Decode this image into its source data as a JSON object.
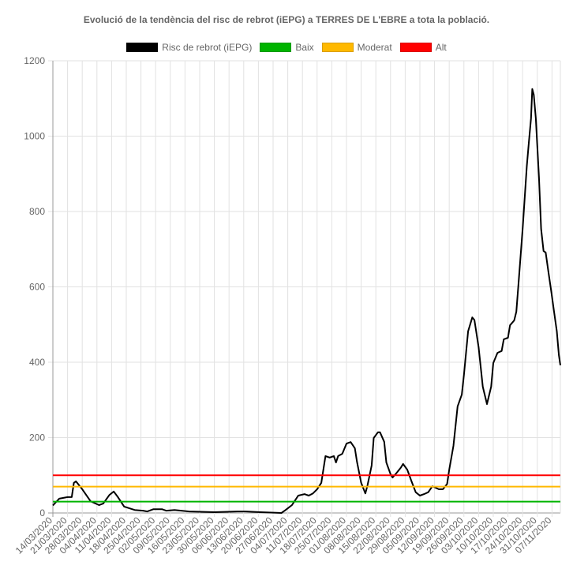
{
  "chart_data": {
    "type": "line",
    "title": "Evolució de la tendència del risc de rebrot (iEPG) a TERRES DE L'EBRE a tota la població.",
    "xlabel": "",
    "ylabel": "",
    "ylim": [
      0,
      1200
    ],
    "yticks": [
      "0",
      "200",
      "400",
      "600",
      "800",
      "1000",
      "1200"
    ],
    "x_unit": "days since 14/03/2020",
    "xlim": [
      0,
      242
    ],
    "xtick_labels": [
      "14/03/2020",
      "21/03/2020",
      "28/03/2020",
      "04/04/2020",
      "11/04/2020",
      "18/04/2020",
      "25/04/2020",
      "02/05/2020",
      "09/05/2020",
      "16/05/2020",
      "23/05/2020",
      "30/05/2020",
      "06/06/2020",
      "13/06/2020",
      "20/06/2020",
      "27/06/2020",
      "04/07/2020",
      "11/07/2020",
      "18/07/2020",
      "25/07/2020",
      "01/08/2020",
      "08/08/2020",
      "15/08/2020",
      "22/08/2020",
      "29/08/2020",
      "05/09/2020",
      "12/09/2020",
      "19/09/2020",
      "26/09/2020",
      "03/10/2020",
      "10/10/2020",
      "17/10/2020",
      "24/10/2020",
      "31/10/2020",
      "07/11/2020"
    ],
    "grid": true,
    "legend_position": "top",
    "series": [
      {
        "name": "Risc de rebrot (iEPG)",
        "color": "#000000",
        "points": [
          [
            0,
            20
          ],
          [
            3,
            38
          ],
          [
            7,
            42
          ],
          [
            9,
            42
          ],
          [
            10,
            80
          ],
          [
            11,
            84
          ],
          [
            14,
            63
          ],
          [
            18,
            31
          ],
          [
            22,
            21
          ],
          [
            24,
            25
          ],
          [
            27,
            48
          ],
          [
            29,
            57
          ],
          [
            31,
            42
          ],
          [
            34,
            17
          ],
          [
            39,
            8
          ],
          [
            43,
            6
          ],
          [
            45,
            4
          ],
          [
            48,
            10
          ],
          [
            52,
            10
          ],
          [
            54,
            6
          ],
          [
            58,
            8
          ],
          [
            65,
            4
          ],
          [
            77,
            2
          ],
          [
            88,
            4
          ],
          [
            92,
            4
          ],
          [
            99,
            2
          ],
          [
            109,
            0
          ],
          [
            111,
            8
          ],
          [
            114,
            21
          ],
          [
            117,
            46
          ],
          [
            120,
            50
          ],
          [
            122,
            46
          ],
          [
            124,
            52
          ],
          [
            126,
            63
          ],
          [
            128,
            80
          ],
          [
            130,
            151
          ],
          [
            132,
            147
          ],
          [
            134,
            151
          ],
          [
            135,
            134
          ],
          [
            136,
            151
          ],
          [
            138,
            157
          ],
          [
            140,
            184
          ],
          [
            142,
            188
          ],
          [
            144,
            172
          ],
          [
            145,
            136
          ],
          [
            147,
            80
          ],
          [
            149,
            52
          ],
          [
            150,
            73
          ],
          [
            152,
            126
          ],
          [
            153,
            199
          ],
          [
            155,
            214
          ],
          [
            156,
            214
          ],
          [
            158,
            189
          ],
          [
            159,
            134
          ],
          [
            161,
            103
          ],
          [
            162,
            94
          ],
          [
            164,
            107
          ],
          [
            166,
            121
          ],
          [
            167,
            130
          ],
          [
            169,
            115
          ],
          [
            171,
            84
          ],
          [
            173,
            55
          ],
          [
            175,
            46
          ],
          [
            177,
            50
          ],
          [
            179,
            55
          ],
          [
            181,
            71
          ],
          [
            184,
            63
          ],
          [
            186,
            63
          ],
          [
            188,
            77
          ],
          [
            189,
            115
          ],
          [
            191,
            178
          ],
          [
            193,
            283
          ],
          [
            195,
            314
          ],
          [
            196,
            366
          ],
          [
            198,
            482
          ],
          [
            200,
            519
          ],
          [
            201,
            512
          ],
          [
            203,
            440
          ],
          [
            205,
            335
          ],
          [
            207,
            289
          ],
          [
            209,
            335
          ],
          [
            210,
            398
          ],
          [
            212,
            425
          ],
          [
            214,
            430
          ],
          [
            215,
            461
          ],
          [
            217,
            465
          ],
          [
            218,
            498
          ],
          [
            220,
            511
          ],
          [
            221,
            534
          ],
          [
            222,
            607
          ],
          [
            224,
            754
          ],
          [
            226,
            921
          ],
          [
            227,
            984
          ],
          [
            228,
            1047
          ],
          [
            228.6,
            1125
          ],
          [
            229.3,
            1110
          ],
          [
            230.3,
            1047
          ],
          [
            231.8,
            890
          ],
          [
            232.8,
            754
          ],
          [
            234,
            695
          ],
          [
            235,
            691
          ],
          [
            236.3,
            639
          ],
          [
            237.7,
            586
          ],
          [
            239,
            534
          ],
          [
            240.3,
            482
          ],
          [
            241.3,
            419
          ],
          [
            242,
            392
          ]
        ]
      },
      {
        "name": "Baix",
        "color": "#00b400",
        "constant": 30
      },
      {
        "name": "Moderat",
        "color": "#ffb900",
        "constant": 70
      },
      {
        "name": "Alt",
        "color": "#ff0000",
        "constant": 100
      }
    ]
  }
}
